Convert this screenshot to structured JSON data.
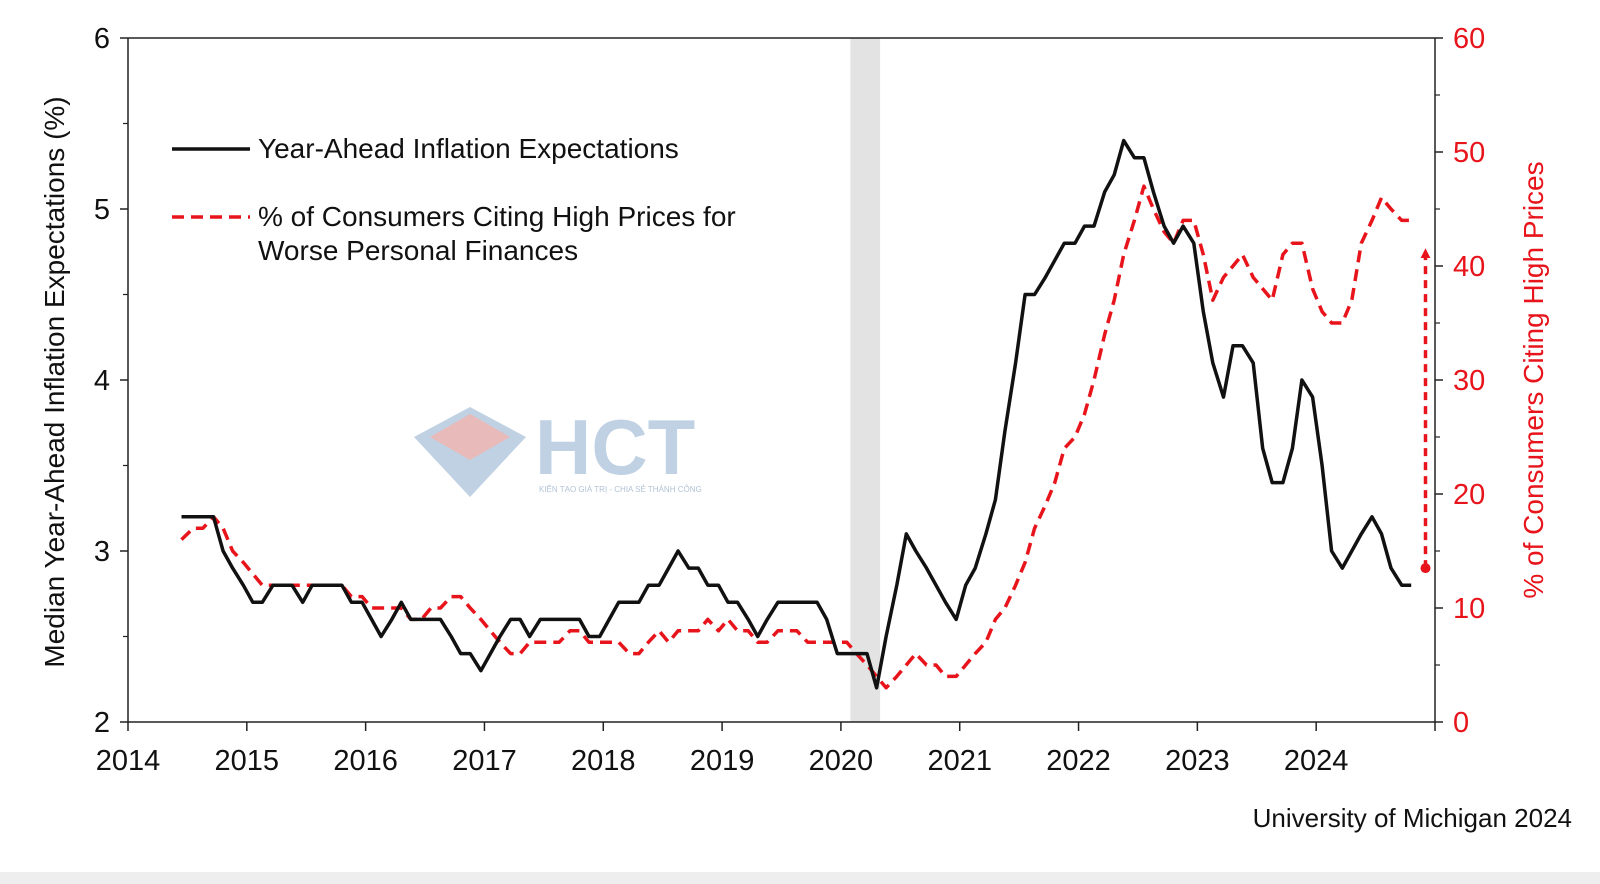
{
  "source_note": "University of Michigan 2024",
  "watermark": {
    "brand": "HCT",
    "tagline": "KIẾN TẠO GIÁ TRỊ - CHIA SẺ THÀNH CÔNG"
  },
  "colors": {
    "expectations": "#111111",
    "prices": "#e8141b",
    "recession": "#e3e3e3",
    "axis": "#222222",
    "watermark_blue": "#b9cde0",
    "watermark_red": "#e6b3b3"
  },
  "chart_data": {
    "type": "line",
    "title": "",
    "xlabel": "",
    "ylabel": "Median Year-Ahead Inflation Expectations (%)",
    "y2label": "% of Consumers Citing High Prices",
    "x_ticks": [
      "2014",
      "2015",
      "2016",
      "2017",
      "2018",
      "2019",
      "2020",
      "2021",
      "2022",
      "2023",
      "2024"
    ],
    "y_ticks": [
      "2",
      "3",
      "4",
      "5",
      "6"
    ],
    "y2_ticks": [
      "0",
      "10",
      "20",
      "30",
      "40",
      "50",
      "60"
    ],
    "xlim": [
      2014,
      2025.0
    ],
    "ylim": [
      2,
      6
    ],
    "y2lim": [
      0,
      60
    ],
    "grid": false,
    "legend_position": "top-left",
    "recession_shading": [
      2020.08,
      2020.33
    ],
    "series": [
      {
        "name": "Year-Ahead Inflation Expectations",
        "axis": "left",
        "style": "solid",
        "x": [
          2014.45,
          2014.55,
          2014.63,
          2014.72,
          2014.8,
          2014.88,
          2014.97,
          2015.05,
          2015.13,
          2015.22,
          2015.3,
          2015.38,
          2015.47,
          2015.55,
          2015.63,
          2015.72,
          2015.8,
          2015.88,
          2015.97,
          2016.05,
          2016.13,
          2016.22,
          2016.3,
          2016.38,
          2016.47,
          2016.55,
          2016.63,
          2016.72,
          2016.8,
          2016.88,
          2016.97,
          2017.05,
          2017.13,
          2017.22,
          2017.3,
          2017.38,
          2017.47,
          2017.55,
          2017.63,
          2017.72,
          2017.8,
          2017.88,
          2017.97,
          2018.05,
          2018.13,
          2018.22,
          2018.3,
          2018.38,
          2018.47,
          2018.55,
          2018.63,
          2018.72,
          2018.8,
          2018.88,
          2018.97,
          2019.05,
          2019.13,
          2019.22,
          2019.3,
          2019.38,
          2019.47,
          2019.55,
          2019.63,
          2019.72,
          2019.8,
          2019.88,
          2019.97,
          2020.05,
          2020.13,
          2020.22,
          2020.3,
          2020.38,
          2020.47,
          2020.55,
          2020.63,
          2020.72,
          2020.8,
          2020.88,
          2020.97,
          2021.05,
          2021.13,
          2021.22,
          2021.3,
          2021.38,
          2021.47,
          2021.55,
          2021.63,
          2021.72,
          2021.8,
          2021.88,
          2021.97,
          2022.05,
          2022.13,
          2022.22,
          2022.3,
          2022.38,
          2022.47,
          2022.55,
          2022.63,
          2022.72,
          2022.8,
          2022.88,
          2022.97,
          2023.05,
          2023.13,
          2023.22,
          2023.3,
          2023.38,
          2023.47,
          2023.55,
          2023.63,
          2023.72,
          2023.8,
          2023.88,
          2023.97,
          2024.05,
          2024.13,
          2024.22,
          2024.3,
          2024.38,
          2024.47,
          2024.55,
          2024.63,
          2024.72,
          2024.8
        ],
        "values": [
          3.2,
          3.2,
          3.2,
          3.2,
          3.0,
          2.9,
          2.8,
          2.7,
          2.7,
          2.8,
          2.8,
          2.8,
          2.7,
          2.8,
          2.8,
          2.8,
          2.8,
          2.7,
          2.7,
          2.6,
          2.5,
          2.6,
          2.7,
          2.6,
          2.6,
          2.6,
          2.6,
          2.5,
          2.4,
          2.4,
          2.3,
          2.4,
          2.5,
          2.6,
          2.6,
          2.5,
          2.6,
          2.6,
          2.6,
          2.6,
          2.6,
          2.5,
          2.5,
          2.6,
          2.7,
          2.7,
          2.7,
          2.8,
          2.8,
          2.9,
          3.0,
          2.9,
          2.9,
          2.8,
          2.8,
          2.7,
          2.7,
          2.6,
          2.5,
          2.6,
          2.7,
          2.7,
          2.7,
          2.7,
          2.7,
          2.6,
          2.4,
          2.4,
          2.4,
          2.4,
          2.2,
          2.5,
          2.8,
          3.1,
          3.0,
          2.9,
          2.8,
          2.7,
          2.6,
          2.8,
          2.9,
          3.1,
          3.3,
          3.7,
          4.1,
          4.5,
          4.5,
          4.6,
          4.7,
          4.8,
          4.8,
          4.9,
          4.9,
          5.1,
          5.2,
          5.4,
          5.3,
          5.3,
          5.1,
          4.9,
          4.8,
          4.9,
          4.8,
          4.4,
          4.1,
          3.9,
          4.2,
          4.2,
          4.1,
          3.6,
          3.4,
          3.4,
          3.6,
          4.0,
          3.9,
          3.5,
          3.0,
          2.9,
          3.0,
          3.1,
          3.2,
          3.1,
          2.9,
          2.8,
          2.8
        ]
      },
      {
        "name": "% of Consumers Citing High Prices for Worse Personal Finances",
        "axis": "right",
        "style": "dashed",
        "x": [
          2014.45,
          2014.55,
          2014.63,
          2014.72,
          2014.8,
          2014.88,
          2014.97,
          2015.05,
          2015.13,
          2015.22,
          2015.3,
          2015.38,
          2015.47,
          2015.55,
          2015.63,
          2015.72,
          2015.8,
          2015.88,
          2015.97,
          2016.05,
          2016.13,
          2016.22,
          2016.3,
          2016.38,
          2016.47,
          2016.55,
          2016.63,
          2016.72,
          2016.8,
          2016.88,
          2016.97,
          2017.05,
          2017.13,
          2017.22,
          2017.3,
          2017.38,
          2017.47,
          2017.55,
          2017.63,
          2017.72,
          2017.8,
          2017.88,
          2017.97,
          2018.05,
          2018.13,
          2018.22,
          2018.3,
          2018.38,
          2018.47,
          2018.55,
          2018.63,
          2018.72,
          2018.8,
          2018.88,
          2018.97,
          2019.05,
          2019.13,
          2019.22,
          2019.3,
          2019.38,
          2019.47,
          2019.55,
          2019.63,
          2019.72,
          2019.8,
          2019.88,
          2019.97,
          2020.05,
          2020.13,
          2020.22,
          2020.3,
          2020.38,
          2020.47,
          2020.55,
          2020.63,
          2020.72,
          2020.8,
          2020.88,
          2020.97,
          2021.05,
          2021.13,
          2021.22,
          2021.3,
          2021.38,
          2021.47,
          2021.55,
          2021.63,
          2021.72,
          2021.8,
          2021.88,
          2021.97,
          2022.05,
          2022.13,
          2022.22,
          2022.3,
          2022.38,
          2022.47,
          2022.55,
          2022.63,
          2022.72,
          2022.8,
          2022.88,
          2022.97,
          2023.05,
          2023.13,
          2023.22,
          2023.3,
          2023.38,
          2023.47,
          2023.55,
          2023.63,
          2023.72,
          2023.8,
          2023.88,
          2023.97,
          2024.05,
          2024.13,
          2024.22,
          2024.3,
          2024.38,
          2024.47,
          2024.55,
          2024.63,
          2024.72,
          2024.8
        ],
        "values": [
          16,
          17,
          17,
          18,
          17,
          15,
          14,
          13,
          12,
          12,
          12,
          12,
          12,
          12,
          12,
          12,
          12,
          11,
          11,
          10,
          10,
          10,
          10,
          9,
          9,
          10,
          10,
          11,
          11,
          10,
          9,
          8,
          7,
          6,
          6,
          7,
          7,
          7,
          7,
          8,
          8,
          7,
          7,
          7,
          7,
          6,
          6,
          7,
          8,
          7,
          8,
          8,
          8,
          9,
          8,
          9,
          8,
          8,
          7,
          7,
          8,
          8,
          8,
          7,
          7,
          7,
          7,
          7,
          6,
          5,
          4,
          3,
          4,
          5,
          6,
          5,
          5,
          4,
          4,
          5,
          6,
          7,
          9,
          10,
          12,
          14,
          17,
          19,
          21,
          24,
          25,
          27,
          30,
          34,
          37,
          41,
          44,
          47,
          45,
          43,
          42,
          44,
          44,
          41,
          37,
          39,
          40,
          41,
          39,
          38,
          37,
          41,
          42,
          42,
          38,
          36,
          35,
          35,
          37,
          42,
          44,
          46,
          45,
          44,
          44
        ],
        "annotation_arrow": {
          "x": 2024.92,
          "from": 13.5,
          "to": 42
        }
      }
    ]
  }
}
